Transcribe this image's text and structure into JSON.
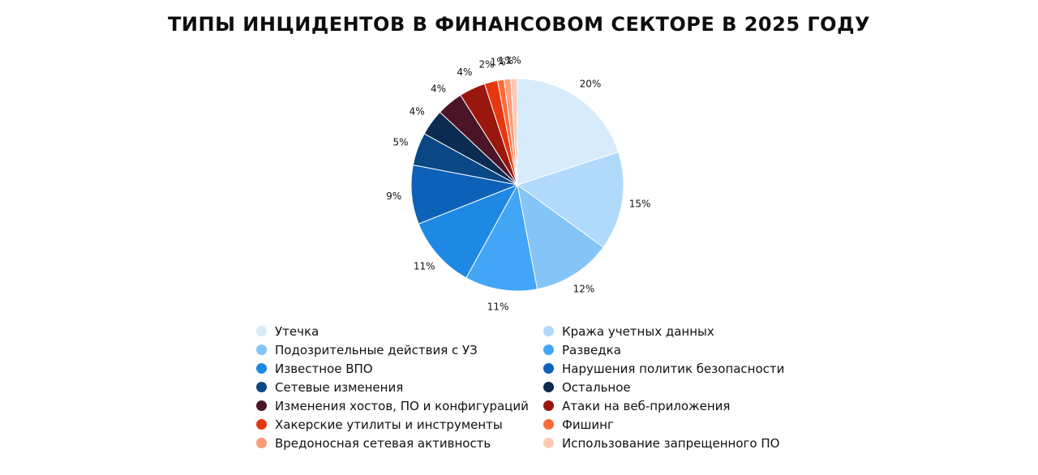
{
  "chart_data": {
    "type": "pie",
    "title": "ТИПЫ ИНЦИДЕНТОВ В ФИНАНСОВОМ СЕКТОРЕ В 2025 ГОДУ",
    "categories": [
      "Утечка",
      "Кража учетных данных",
      "Подозрительные действия с УЗ",
      "Разведка",
      "Известное ВПО",
      "Нарушения политик безопасности",
      "Сетевые изменения",
      "Остальное",
      "Изменения хостов, ПО и конфигураций",
      "Атаки на веб-приложения",
      "Хакерские утилиты и инструменты",
      "Фишинг",
      "Вредоносная сетевая активность",
      "Использование запрещенного ПО"
    ],
    "values": [
      20,
      15,
      12,
      11,
      11,
      9,
      5,
      4,
      4,
      4,
      2,
      1,
      1,
      1
    ],
    "labels": [
      "20%",
      "15%",
      "12%",
      "11%",
      "11%",
      "9%",
      "5%",
      "4%",
      "4%",
      "4%",
      "2%",
      "1%",
      "1%",
      "1%"
    ],
    "colors": [
      "#d6ebfb",
      "#b1d9fb",
      "#84c4f7",
      "#42a5f5",
      "#1e88e5",
      "#0d62b8",
      "#0a4785",
      "#0b2b50",
      "#4c1527",
      "#99170c",
      "#e63710",
      "#ff6a3a",
      "#ff9b78",
      "#ffc9b3"
    ],
    "legend_position": "bottom"
  }
}
